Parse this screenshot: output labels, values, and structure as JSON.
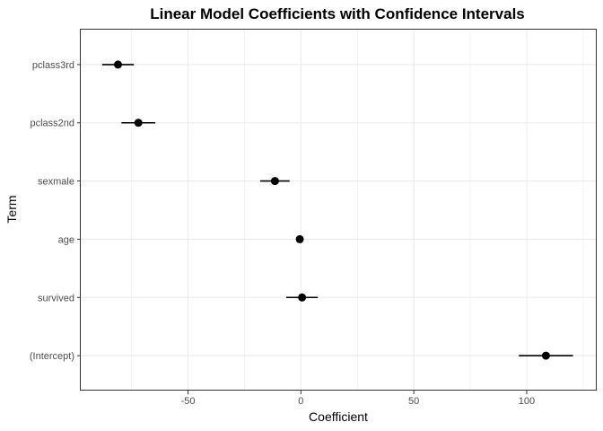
{
  "chart_data": {
    "type": "scatter",
    "title": "Linear Model Coefficients with Confidence Intervals",
    "xlabel": "Coefficient",
    "ylabel": "Term",
    "xlim": [
      -97.5,
      131
    ],
    "xticks": [
      -50,
      0,
      50,
      100
    ],
    "grid": true,
    "legend": "none",
    "terms": [
      {
        "term": "pclass3rd",
        "estimate": -81,
        "lower": -88,
        "upper": -74
      },
      {
        "term": "pclass2nd",
        "estimate": -72,
        "lower": -79.5,
        "upper": -64.5
      },
      {
        "term": "sexmale",
        "estimate": -11.5,
        "lower": -18,
        "upper": -5
      },
      {
        "term": "age",
        "estimate": -0.5,
        "lower": -1,
        "upper": 0
      },
      {
        "term": "survived",
        "estimate": 0.5,
        "lower": -6.5,
        "upper": 7.5
      },
      {
        "term": "(Intercept)",
        "estimate": 108.5,
        "lower": 96.5,
        "upper": 120.5
      }
    ],
    "colors": {
      "point": "#000000",
      "interval": "#000000",
      "grid": "#ebebeb",
      "panel_border": "#333333"
    }
  }
}
